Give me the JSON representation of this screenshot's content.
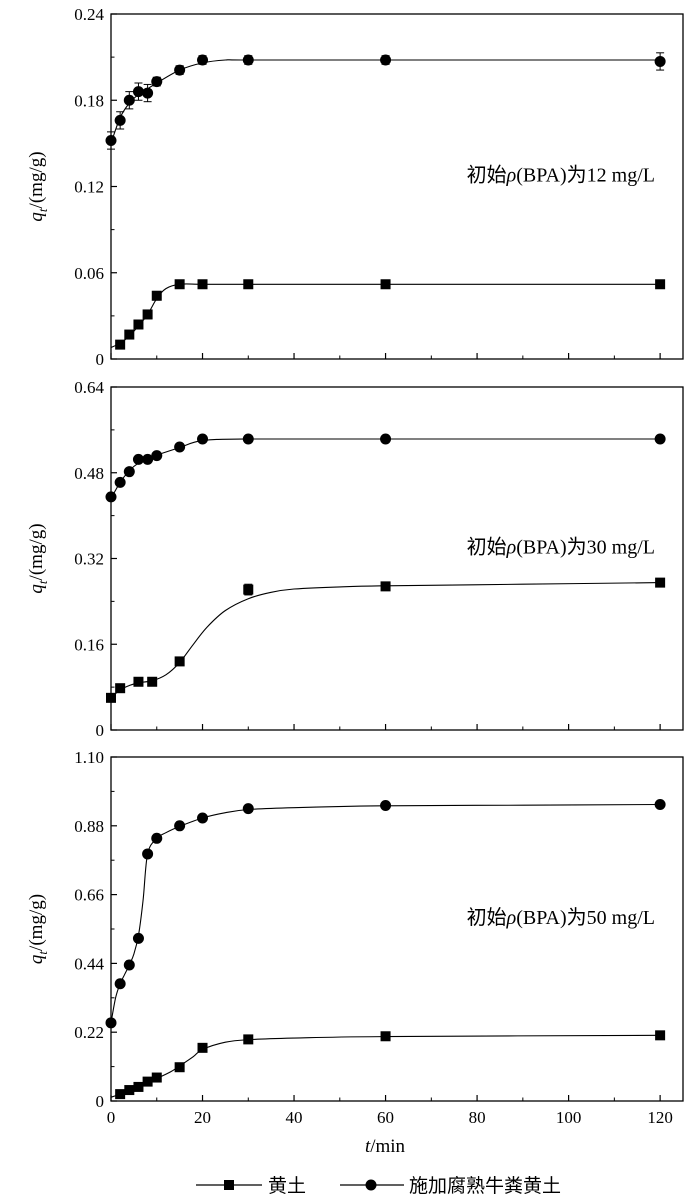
{
  "chart_data": {
    "type": "line",
    "xlabel_prefix": "t",
    "xlabel_suffix": "/min",
    "ylabel_prefix": "q",
    "ylabel_sub": "t",
    "ylabel_suffix": "/(mg/g)",
    "xlim": [
      0,
      125
    ],
    "xticks": [
      "0",
      "20",
      "40",
      "60",
      "80",
      "100",
      "120"
    ],
    "grid": false,
    "legend_position": "bottom",
    "legend": [
      "黄土",
      "施加腐熟牛粪黄土"
    ],
    "marker_shapes": [
      "square",
      "circle"
    ],
    "panels": [
      {
        "annotation_pre": "初始",
        "annotation_rho": "ρ",
        "annotation_post": "(BPA)为12 mg/L",
        "ylim": [
          0,
          0.24
        ],
        "yticks": [
          "0",
          "0.06",
          "0.12",
          "0.18",
          "0.24"
        ],
        "series": [
          {
            "name": "黄土",
            "x": [
              2,
              4,
              6,
              8,
              10,
              15,
              20,
              30,
              60,
              120
            ],
            "y": [
              0.01,
              0.017,
              0.024,
              0.031,
              0.044,
              0.052,
              0.052,
              0.052,
              0.052,
              0.052
            ],
            "err": [
              0.002,
              0.002,
              0.002,
              0.003,
              0.003,
              0.002,
              0.002,
              0.002,
              0.002,
              0.002
            ],
            "fit_x": [
              0,
              2,
              4,
              6,
              8,
              10,
              12,
              15,
              20,
              30,
              60,
              120
            ],
            "fit_y": [
              0.008,
              0.011,
              0.016,
              0.023,
              0.031,
              0.042,
              0.049,
              0.052,
              0.052,
              0.052,
              0.052,
              0.052
            ]
          },
          {
            "name": "施加腐熟牛粪黄土",
            "x": [
              0,
              2,
              4,
              6,
              8,
              10,
              15,
              20,
              30,
              60,
              120
            ],
            "y": [
              0.152,
              0.166,
              0.18,
              0.186,
              0.185,
              0.193,
              0.201,
              0.208,
              0.208,
              0.208,
              0.207
            ],
            "err": [
              0.006,
              0.006,
              0.006,
              0.006,
              0.006,
              0.003,
              0.003,
              0.003,
              0.003,
              0.003,
              0.006
            ],
            "fit_x": [
              0,
              2,
              4,
              6,
              8,
              10,
              15,
              20,
              25,
              30,
              60,
              120
            ],
            "fit_y": [
              0.15,
              0.168,
              0.178,
              0.184,
              0.188,
              0.192,
              0.201,
              0.206,
              0.208,
              0.208,
              0.208,
              0.208
            ]
          }
        ]
      },
      {
        "annotation_pre": "初始",
        "annotation_rho": "ρ",
        "annotation_post": "(BPA)为30 mg/L",
        "ylim": [
          0,
          0.64
        ],
        "yticks": [
          "0",
          "0.16",
          "0.32",
          "0.48",
          "0.64"
        ],
        "series": [
          {
            "name": "黄土",
            "x": [
              0,
              2,
              6,
              9,
              15,
              30,
              60,
              120
            ],
            "y": [
              0.06,
              0.078,
              0.09,
              0.09,
              0.128,
              0.262,
              0.268,
              0.275
            ],
            "err": [
              0.004,
              0.004,
              0.004,
              0.004,
              0.004,
              0.01,
              0.006,
              0.005
            ],
            "fit_x": [
              0,
              2,
              4,
              6,
              9,
              12,
              15,
              18,
              21,
              25,
              30,
              35,
              40,
              50,
              60,
              90,
              120
            ],
            "fit_y": [
              0.06,
              0.075,
              0.083,
              0.088,
              0.092,
              0.103,
              0.126,
              0.16,
              0.192,
              0.223,
              0.245,
              0.257,
              0.263,
              0.267,
              0.269,
              0.272,
              0.275
            ]
          },
          {
            "name": "施加腐熟牛粪黄土",
            "x": [
              0,
              2,
              4,
              6,
              8,
              10,
              15,
              20,
              30,
              60,
              120
            ],
            "y": [
              0.435,
              0.462,
              0.482,
              0.505,
              0.505,
              0.512,
              0.528,
              0.543,
              0.543,
              0.543,
              0.543
            ],
            "err": [
              0.006,
              0.005,
              0.005,
              0.005,
              0.005,
              0.005,
              0.006,
              0.006,
              0.006,
              0.006,
              0.006
            ],
            "fit_x": [
              0,
              2,
              4,
              6,
              8,
              10,
              15,
              20,
              30,
              60,
              120
            ],
            "fit_y": [
              0.432,
              0.462,
              0.484,
              0.498,
              0.506,
              0.513,
              0.527,
              0.54,
              0.543,
              0.543,
              0.543
            ]
          }
        ]
      },
      {
        "annotation_pre": "初始",
        "annotation_rho": "ρ",
        "annotation_post": "(BPA)为50 mg/L",
        "ylim": [
          0,
          1.1
        ],
        "yticks": [
          "0",
          "0.22",
          "0.44",
          "0.66",
          "0.88",
          "1.10"
        ],
        "series": [
          {
            "name": "黄土",
            "x": [
              2,
              4,
              6,
              8,
              10,
              15,
              20,
              30,
              60,
              120
            ],
            "y": [
              0.022,
              0.035,
              0.045,
              0.062,
              0.075,
              0.108,
              0.17,
              0.197,
              0.207,
              0.21
            ],
            "err": [
              0.006,
              0.006,
              0.006,
              0.006,
              0.006,
              0.006,
              0.008,
              0.008,
              0.008,
              0.008
            ],
            "fit_x": [
              0,
              2,
              4,
              6,
              8,
              10,
              13,
              15,
              18,
              20,
              25,
              30,
              40,
              60,
              120
            ],
            "fit_y": [
              0.012,
              0.022,
              0.033,
              0.045,
              0.058,
              0.072,
              0.093,
              0.112,
              0.142,
              0.165,
              0.188,
              0.196,
              0.201,
              0.206,
              0.21
            ]
          },
          {
            "name": "施加腐熟牛粪黄土",
            "x": [
              0,
              2,
              4,
              6,
              8,
              10,
              15,
              20,
              30,
              60,
              120
            ],
            "y": [
              0.25,
              0.375,
              0.435,
              0.52,
              0.79,
              0.84,
              0.88,
              0.905,
              0.935,
              0.945,
              0.948
            ],
            "err": [
              0.008,
              0.008,
              0.008,
              0.008,
              0.008,
              0.008,
              0.008,
              0.008,
              0.008,
              0.008,
              0.008
            ],
            "fit_x": [
              0,
              1,
              2,
              3,
              4,
              5,
              6,
              7,
              8,
              10,
              12,
              15,
              20,
              25,
              30,
              40,
              60,
              90,
              120
            ],
            "fit_y": [
              0.25,
              0.33,
              0.375,
              0.405,
              0.435,
              0.47,
              0.53,
              0.64,
              0.79,
              0.84,
              0.858,
              0.878,
              0.905,
              0.922,
              0.932,
              0.938,
              0.944,
              0.946,
              0.948
            ]
          }
        ]
      }
    ]
  }
}
